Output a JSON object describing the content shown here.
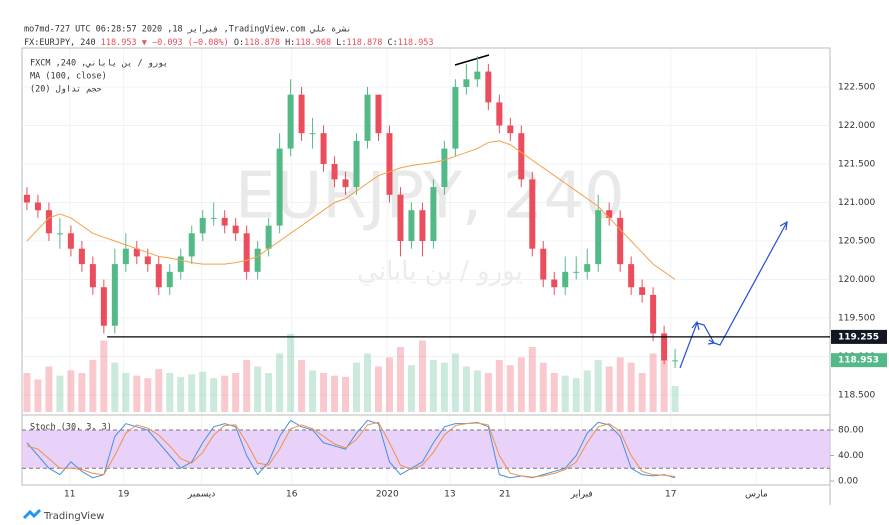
{
  "header": {
    "line1": "mo7md-727 UTC 06:28:57 2020 ,18 فبراير ,TradingView.com نشرة علي",
    "symbol": "FX:EURJPY, 240",
    "last": "118.953",
    "change": "▼ −0.093 (−0.08%)",
    "ohlc": [
      {
        "label": "O:",
        "value": "118.878"
      },
      {
        "label": "H:",
        "value": "118.968"
      },
      {
        "label": "L:",
        "value": "118.878"
      },
      {
        "label": "C:",
        "value": "118.953"
      }
    ],
    "footer": "TradingView"
  },
  "chart_data": [
    {
      "type": "candlestick",
      "legend": [
        "FXCM ,240 ,يورو / ين ياباني",
        "MA (100, close)",
        "حجم تداول (20)"
      ],
      "watermark": "EURJPY, 240",
      "watermark_sub": "يورو / ين ياباني",
      "up_color": "#53b987",
      "down_color": "#eb4d5c",
      "open": [
        121.1,
        121.0,
        120.9,
        120.6,
        120.6,
        120.4,
        120.2,
        119.9,
        119.4,
        120.2,
        120.4,
        120.3,
        120.2,
        119.9,
        120.1,
        120.3,
        120.6,
        120.8,
        120.8,
        120.7,
        120.6,
        120.1,
        120.4,
        120.7,
        121.7,
        122.4,
        121.9,
        121.9,
        121.5,
        121.3,
        121.2,
        121.8,
        122.4,
        121.9,
        121.1,
        120.5,
        120.9,
        120.5,
        121.2,
        121.7,
        122.5,
        122.6,
        122.7,
        122.3,
        122.0,
        121.9,
        121.3,
        120.4,
        120.0,
        119.9,
        120.1,
        120.1,
        120.2,
        120.9,
        120.8,
        120.2,
        119.9,
        119.8,
        119.3,
        118.95
      ],
      "high": [
        121.2,
        121.1,
        121.0,
        120.8,
        120.7,
        120.5,
        120.3,
        120.0,
        120.4,
        120.6,
        120.5,
        120.4,
        120.3,
        120.2,
        120.4,
        120.7,
        120.9,
        121.0,
        120.9,
        120.8,
        120.7,
        120.5,
        120.8,
        121.9,
        122.6,
        122.5,
        122.1,
        122.0,
        121.6,
        121.4,
        121.9,
        122.5,
        122.4,
        122.0,
        121.2,
        121.0,
        121.0,
        121.3,
        121.8,
        122.6,
        122.8,
        122.9,
        122.8,
        122.4,
        122.1,
        122.0,
        121.4,
        120.5,
        120.1,
        120.3,
        120.3,
        120.4,
        121.1,
        121.0,
        120.9,
        120.3,
        120.0,
        119.9,
        119.4,
        119.1
      ],
      "low": [
        120.9,
        120.8,
        120.5,
        120.4,
        120.3,
        120.1,
        119.8,
        119.3,
        119.3,
        120.1,
        120.2,
        120.1,
        119.8,
        119.8,
        120.0,
        120.2,
        120.5,
        120.7,
        120.6,
        120.5,
        120.0,
        120.0,
        120.3,
        120.6,
        121.6,
        121.8,
        121.7,
        121.4,
        121.2,
        121.1,
        121.1,
        121.7,
        121.8,
        121.0,
        120.3,
        120.4,
        120.3,
        120.4,
        121.1,
        121.6,
        122.4,
        122.5,
        122.2,
        121.9,
        121.8,
        121.2,
        120.3,
        119.9,
        119.8,
        119.8,
        120.0,
        120.0,
        120.1,
        120.7,
        120.1,
        119.8,
        119.7,
        119.2,
        118.9,
        118.85
      ],
      "close": [
        121.0,
        120.9,
        120.6,
        120.6,
        120.4,
        120.2,
        119.9,
        119.4,
        120.2,
        120.4,
        120.3,
        120.2,
        119.9,
        120.1,
        120.3,
        120.6,
        120.8,
        120.8,
        120.7,
        120.6,
        120.1,
        120.4,
        120.7,
        121.7,
        122.4,
        121.9,
        121.9,
        121.5,
        121.3,
        121.2,
        121.8,
        122.4,
        121.9,
        121.1,
        120.5,
        120.9,
        120.5,
        121.2,
        121.7,
        122.5,
        122.6,
        122.7,
        122.3,
        122.0,
        121.9,
        121.3,
        120.4,
        120.0,
        119.9,
        120.1,
        120.1,
        120.2,
        120.9,
        120.8,
        120.2,
        119.9,
        119.8,
        119.3,
        118.95,
        118.95
      ],
      "ma": {
        "color": "#f5a04a",
        "values": [
          120.5,
          120.65,
          120.8,
          120.85,
          120.8,
          120.7,
          120.6,
          120.55,
          120.5,
          120.45,
          120.4,
          120.35,
          120.3,
          120.28,
          120.25,
          120.22,
          120.2,
          120.2,
          120.2,
          120.22,
          120.25,
          120.3,
          120.4,
          120.5,
          120.6,
          120.7,
          120.8,
          120.9,
          121.0,
          121.05,
          121.15,
          121.25,
          121.35,
          121.4,
          121.45,
          121.48,
          121.5,
          121.52,
          121.55,
          121.6,
          121.65,
          121.7,
          121.78,
          121.8,
          121.75,
          121.65,
          121.55,
          121.45,
          121.35,
          121.25,
          121.15,
          121.05,
          120.95,
          120.8,
          120.65,
          120.5,
          120.35,
          120.2,
          120.1,
          120.0
        ]
      },
      "volume": {
        "ylim": [
          0,
          100
        ],
        "values": [
          30,
          25,
          35,
          28,
          32,
          30,
          40,
          55,
          38,
          30,
          28,
          26,
          33,
          30,
          27,
          29,
          31,
          26,
          28,
          30,
          40,
          35,
          30,
          45,
          60,
          40,
          32,
          30,
          28,
          27,
          38,
          45,
          35,
          42,
          50,
          36,
          55,
          40,
          38,
          45,
          35,
          32,
          30,
          40,
          36,
          42,
          50,
          38,
          30,
          28,
          26,
          32,
          40,
          35,
          42,
          38,
          30,
          45,
          40,
          20
        ]
      },
      "xlim": [
        -0.45,
        73.1
      ],
      "ylim": [
        118.28,
        122.98
      ],
      "xticks": [
        {
          "value": 3.9,
          "label": "11"
        },
        {
          "value": 8.8,
          "label": "19"
        },
        {
          "value": 15.9,
          "label": "ديسمبر"
        },
        {
          "value": 24.1,
          "label": "16"
        },
        {
          "value": 32.8,
          "label": "2020"
        },
        {
          "value": 38.5,
          "label": "13"
        },
        {
          "value": 43.5,
          "label": "21"
        },
        {
          "value": 50.5,
          "label": "فبراير"
        },
        {
          "value": 58.6,
          "label": "17"
        },
        {
          "value": 66.4,
          "label": "مارس"
        }
      ],
      "yticks": [
        {
          "value": 122.5,
          "label": "122.500"
        },
        {
          "value": 122.0,
          "label": "122.000"
        },
        {
          "value": 121.5,
          "label": "121.500"
        },
        {
          "value": 121.0,
          "label": "121.000"
        },
        {
          "value": 120.5,
          "label": "120.500"
        },
        {
          "value": 120.0,
          "label": "120.000"
        },
        {
          "value": 119.5,
          "label": "119.500"
        },
        {
          "value": 119.0,
          "label": "119.000"
        },
        {
          "value": 118.5,
          "label": "118.500"
        }
      ],
      "hline": {
        "value": 119.255,
        "label": "119.255",
        "from": 7.3
      },
      "last": {
        "value": 118.953,
        "label": "118.953"
      },
      "grid": true
    },
    {
      "type": "line",
      "title": "Stoch (30, 3, 3)",
      "band_color": "#e4c7f7",
      "series": [
        {
          "name": "K",
          "color": "#4a90d9",
          "values": [
            60,
            40,
            20,
            10,
            30,
            15,
            5,
            10,
            70,
            90,
            85,
            80,
            60,
            40,
            20,
            30,
            60,
            85,
            90,
            85,
            40,
            10,
            30,
            70,
            95,
            85,
            80,
            60,
            55,
            50,
            75,
            95,
            90,
            30,
            10,
            20,
            30,
            60,
            85,
            90,
            90,
            92,
            85,
            10,
            5,
            8,
            5,
            10,
            15,
            20,
            40,
            75,
            92,
            88,
            70,
            20,
            10,
            8,
            10,
            5
          ]
        },
        {
          "name": "D",
          "color": "#f0904a",
          "values": [
            55,
            50,
            35,
            20,
            20,
            18,
            12,
            10,
            40,
            75,
            88,
            83,
            72,
            55,
            35,
            28,
            45,
            72,
            87,
            88,
            60,
            28,
            25,
            50,
            82,
            88,
            82,
            70,
            58,
            52,
            65,
            88,
            92,
            60,
            25,
            18,
            25,
            45,
            72,
            87,
            90,
            91,
            88,
            40,
            12,
            8,
            6,
            8,
            12,
            18,
            30,
            60,
            85,
            90,
            78,
            40,
            15,
            10,
            9,
            7
          ]
        }
      ],
      "xlim": [
        -0.45,
        73.1
      ],
      "ylim": [
        -6.3,
        95.7
      ],
      "yticks": [
        {
          "value": 80,
          "label": "80.00"
        },
        {
          "value": 40,
          "label": "40.00"
        },
        {
          "value": 0,
          "label": "0.00"
        }
      ],
      "band": [
        20,
        80
      ]
    }
  ]
}
